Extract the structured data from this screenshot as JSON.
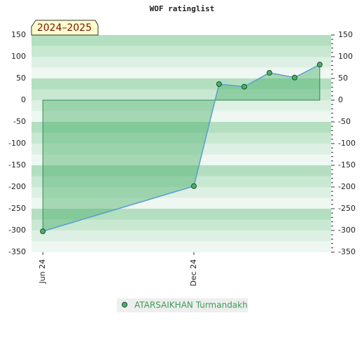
{
  "chart_data": {
    "type": "area",
    "title": "WOF ratinglist",
    "badge": "2024–2025",
    "x": [
      0,
      6,
      7,
      8,
      9,
      10,
      11
    ],
    "xlim": [
      -0.45,
      11.45
    ],
    "xticks": [
      {
        "value": 0,
        "label": "Jun 24"
      },
      {
        "value": 6,
        "label": "Dec 24"
      }
    ],
    "series": [
      {
        "name": "ATARSAIKHAN Turmandakh",
        "color": "#4caf6a",
        "values": [
          -302,
          -198,
          37,
          31,
          63,
          52,
          82
        ]
      }
    ],
    "ylim": [
      -350,
      150
    ],
    "yticks": [
      -350,
      -300,
      -250,
      -200,
      -150,
      -100,
      -50,
      0,
      50,
      100,
      150
    ],
    "grid": true
  }
}
